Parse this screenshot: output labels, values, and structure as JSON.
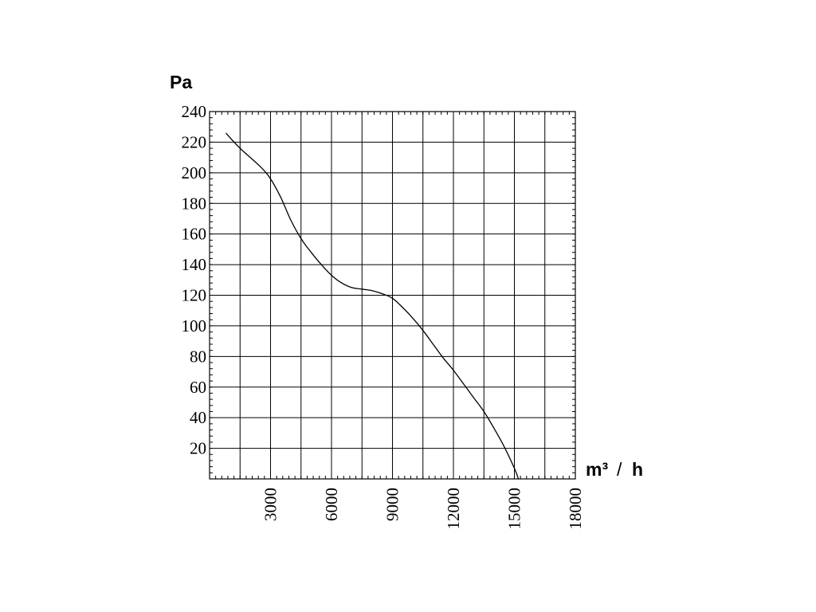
{
  "chart_data": {
    "type": "line",
    "title": "",
    "ylabel": "Pa",
    "xlabel_main": "m³",
    "xlabel_sep": "/",
    "xlabel_end": "h",
    "xlim": [
      0,
      18000
    ],
    "ylim": [
      0,
      240
    ],
    "x_ticks": [
      3000,
      6000,
      9000,
      12000,
      15000,
      18000
    ],
    "x_tick_labels": [
      "3000",
      "6000",
      "9000",
      "12000",
      "15000",
      "18000"
    ],
    "y_ticks": [
      20,
      40,
      60,
      80,
      100,
      120,
      140,
      160,
      180,
      200,
      220,
      240
    ],
    "y_tick_labels": [
      "20",
      "40",
      "60",
      "80",
      "100",
      "120",
      "140",
      "160",
      "180",
      "200",
      "220",
      "240"
    ],
    "grid": true,
    "series": [
      {
        "x": [
          800,
          1500,
          2500,
          3000,
          3500,
          4000,
          4500,
          5000,
          5500,
          6000,
          6500,
          7000,
          7500,
          8000,
          8500,
          9000,
          9500,
          10000,
          10500,
          11000,
          11500,
          12000,
          12500,
          13000,
          13500,
          14000,
          14500,
          15000,
          15200
        ],
        "y": [
          226,
          216,
          204,
          196,
          184,
          169,
          157,
          148,
          140,
          133,
          128,
          125,
          124,
          123,
          121,
          118,
          112,
          105,
          97,
          88,
          79,
          71,
          62,
          53,
          44,
          33,
          21,
          7,
          0
        ]
      }
    ]
  }
}
